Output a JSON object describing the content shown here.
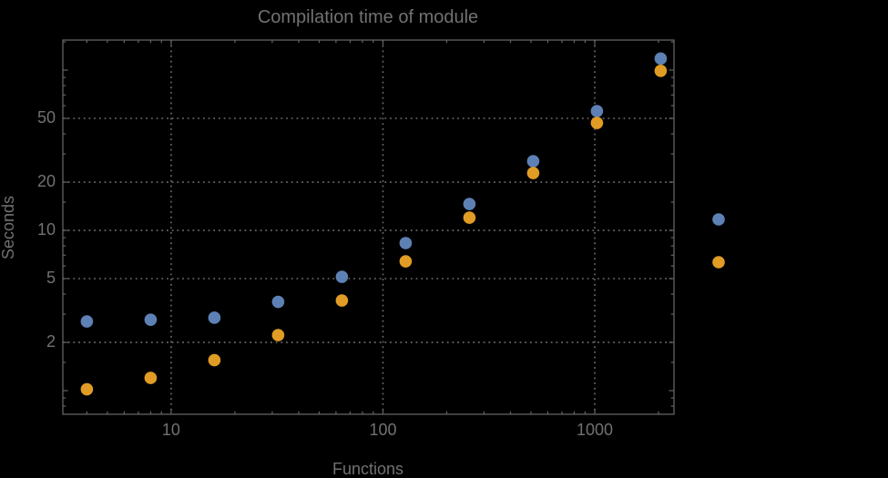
{
  "figure": {
    "background_color": "#000000",
    "text_color": "#717171",
    "frame_color": "#636363",
    "grid_color": "#6d6d6d"
  },
  "chart_data": {
    "type": "scatter",
    "title": "Compilation time of module",
    "xlabel": "Functions",
    "ylabel": "Seconds",
    "xscale": "log",
    "yscale": "log",
    "xlim": [
      3.08,
      2366
    ],
    "ylim": [
      0.712,
      154
    ],
    "grid": "dotted",
    "x": [
      4,
      8,
      16,
      32,
      64,
      128,
      256,
      512,
      1024,
      2048
    ],
    "series": [
      {
        "name": "series-1-blue",
        "color": "#5E81B5",
        "values": [
          2.7,
          2.77,
          2.85,
          3.58,
          5.13,
          8.33,
          14.6,
          27.0,
          55.5,
          118
        ]
      },
      {
        "name": "series-2-orange",
        "color": "#E09C24",
        "values": [
          1.02,
          1.2,
          1.55,
          2.22,
          3.65,
          6.41,
          12.0,
          22.8,
          46.8,
          99
        ]
      }
    ],
    "x_major_ticks": [
      {
        "v": 10,
        "label": "10"
      },
      {
        "v": 100,
        "label": "100"
      },
      {
        "v": 1000,
        "label": "1000"
      }
    ],
    "x_minor_ticks": [
      4,
      5,
      6,
      7,
      8,
      9,
      20,
      30,
      40,
      50,
      60,
      70,
      80,
      90,
      200,
      300,
      400,
      500,
      600,
      700,
      800,
      900,
      2000
    ],
    "y_major_ticks": [
      {
        "v": 1,
        "label": ""
      },
      {
        "v": 2,
        "label": "2"
      },
      {
        "v": 5,
        "label": "5"
      },
      {
        "v": 10,
        "label": "10"
      },
      {
        "v": 20,
        "label": "20"
      },
      {
        "v": 50,
        "label": "50"
      },
      {
        "v": 100,
        "label": ""
      }
    ],
    "y_minor_ticks": [
      0.8,
      0.9,
      1.5,
      3,
      4,
      6,
      7,
      8,
      9,
      15,
      30,
      40,
      60,
      70,
      80,
      90,
      150
    ],
    "x_gridlines": [
      10,
      100,
      1000
    ],
    "y_gridlines": [
      2,
      5,
      10,
      20,
      50
    ],
    "legend": {
      "position": "right-outside",
      "items": [
        {
          "name": "series-1-blue",
          "color": "#5E81B5",
          "label": ""
        },
        {
          "name": "series-2-orange",
          "color": "#E09C24",
          "label": ""
        }
      ]
    }
  }
}
